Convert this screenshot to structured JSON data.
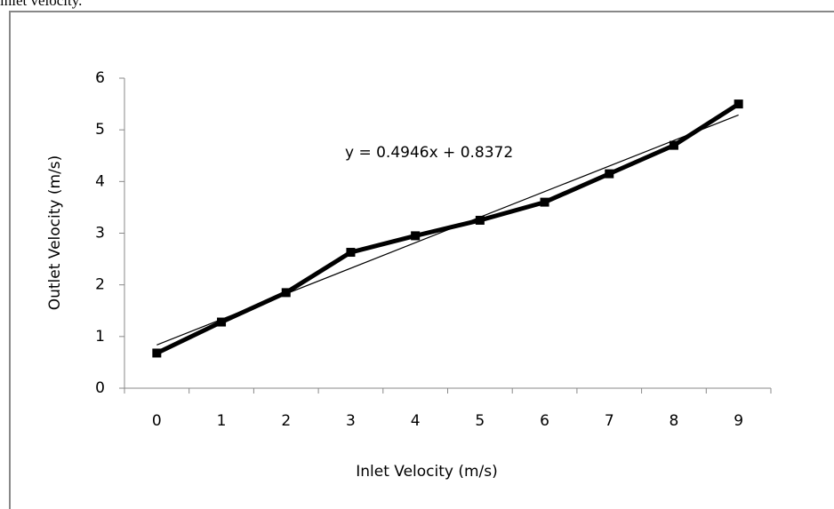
{
  "caption": "inlet velocity.",
  "chart_data": {
    "type": "line",
    "x_label": "Inlet Velocity  (m/s)",
    "y_label": "Outlet Velocity  (m/s)",
    "categories": [
      "0",
      "1",
      "2",
      "3",
      "4",
      "5",
      "6",
      "7",
      "8",
      "9"
    ],
    "series": [
      {
        "name": "Outlet Velocity",
        "color": "#000000",
        "values": [
          0.68,
          1.28,
          1.85,
          2.63,
          2.95,
          3.25,
          3.6,
          4.15,
          4.7,
          5.5
        ]
      }
    ],
    "trendline": {
      "label": "y = 0.4946x + 0.8372",
      "slope": 0.4946,
      "intercept": 0.8372,
      "color": "#000000"
    },
    "ylim": [
      0,
      6
    ],
    "yticks": [
      0,
      1,
      2,
      3,
      4,
      5,
      6
    ],
    "grid": false
  }
}
